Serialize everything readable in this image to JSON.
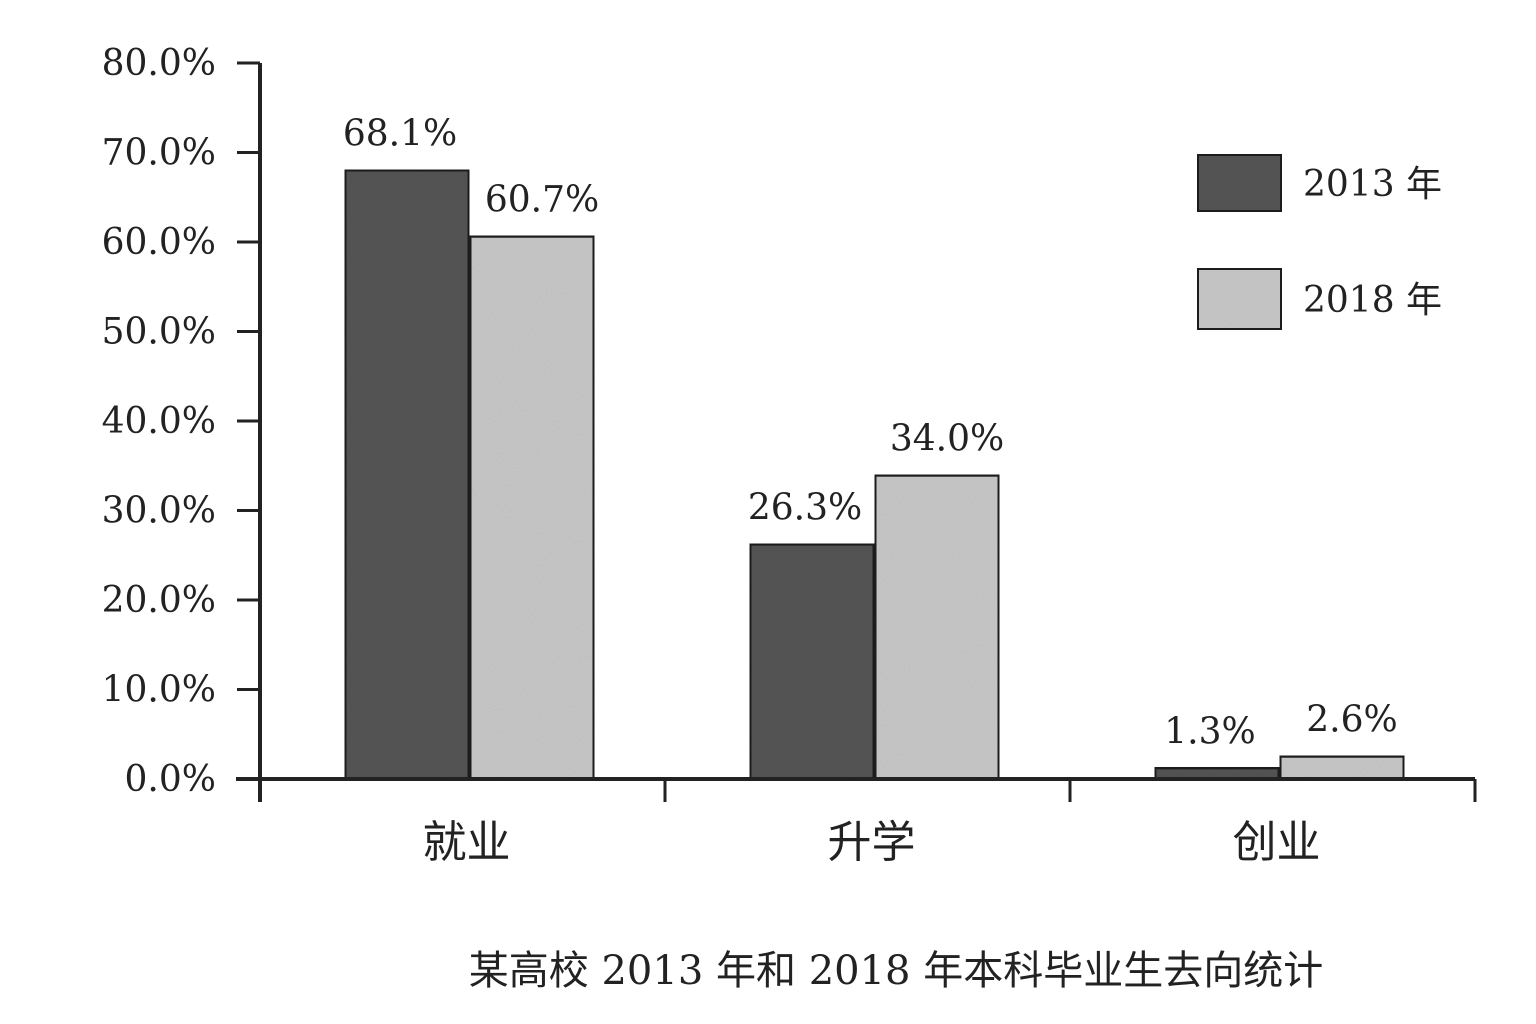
{
  "chart_data": {
    "type": "bar",
    "title": "某高校 2013 年和 2018 年本科毕业生去向统计",
    "xlabel": "",
    "ylabel": "",
    "categories": [
      "就业",
      "升学",
      "创业"
    ],
    "series": [
      {
        "name": "2013 年",
        "color": "#555555",
        "values": [
          68.1,
          26.3,
          1.3
        ],
        "labels": [
          "68.1%",
          "26.3%",
          "1.3%"
        ]
      },
      {
        "name": "2018 年",
        "color": "#c8c8c8",
        "values": [
          60.7,
          34.0,
          2.6
        ],
        "labels": [
          "60.7%",
          "34.0%",
          "2.6%"
        ]
      }
    ],
    "ylim": [
      0,
      80
    ],
    "yticks": [
      0,
      10,
      20,
      30,
      40,
      50,
      60,
      70,
      80
    ],
    "ytick_labels": [
      "0.0%",
      "10.0%",
      "20.0%",
      "30.0%",
      "40.0%",
      "50.0%",
      "60.0%",
      "70.0%",
      "80.0%"
    ],
    "grid": false,
    "legend_position": "top-right"
  }
}
